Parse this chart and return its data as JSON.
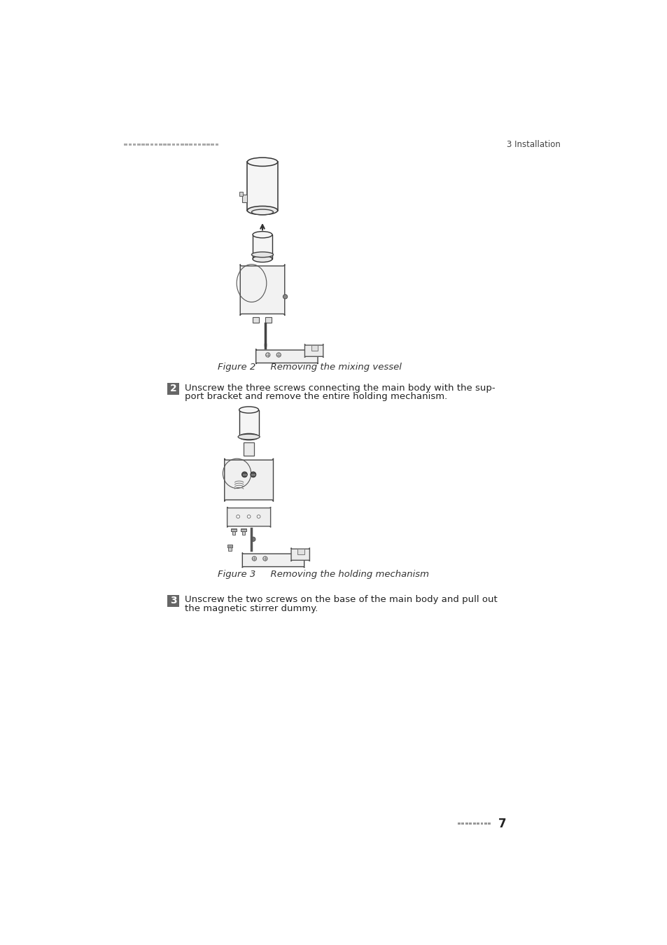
{
  "background_color": "#ffffff",
  "header_dots_color": "#aaaaaa",
  "header_right_text": "3 Installation",
  "header_right_color": "#444444",
  "footer_dots_color": "#999999",
  "footer_page_number": "7",
  "figure2_caption": "Figure 2     Removing the mixing vessel",
  "figure3_caption": "Figure 3     Removing the holding mechanism",
  "step2_number": "2",
  "step2_text_line1": "Unscrew the three screws connecting the main body with the sup-",
  "step2_text_line2": "port bracket and remove the entire holding mechanism.",
  "step3_number": "3",
  "step3_text_line1": "Unscrew the two screws on the base of the main body and pull out",
  "step3_text_line2": "the magnetic stirrer dummy.",
  "step_box_color": "#666666",
  "step_text_color": "#222222",
  "caption_color": "#333333"
}
